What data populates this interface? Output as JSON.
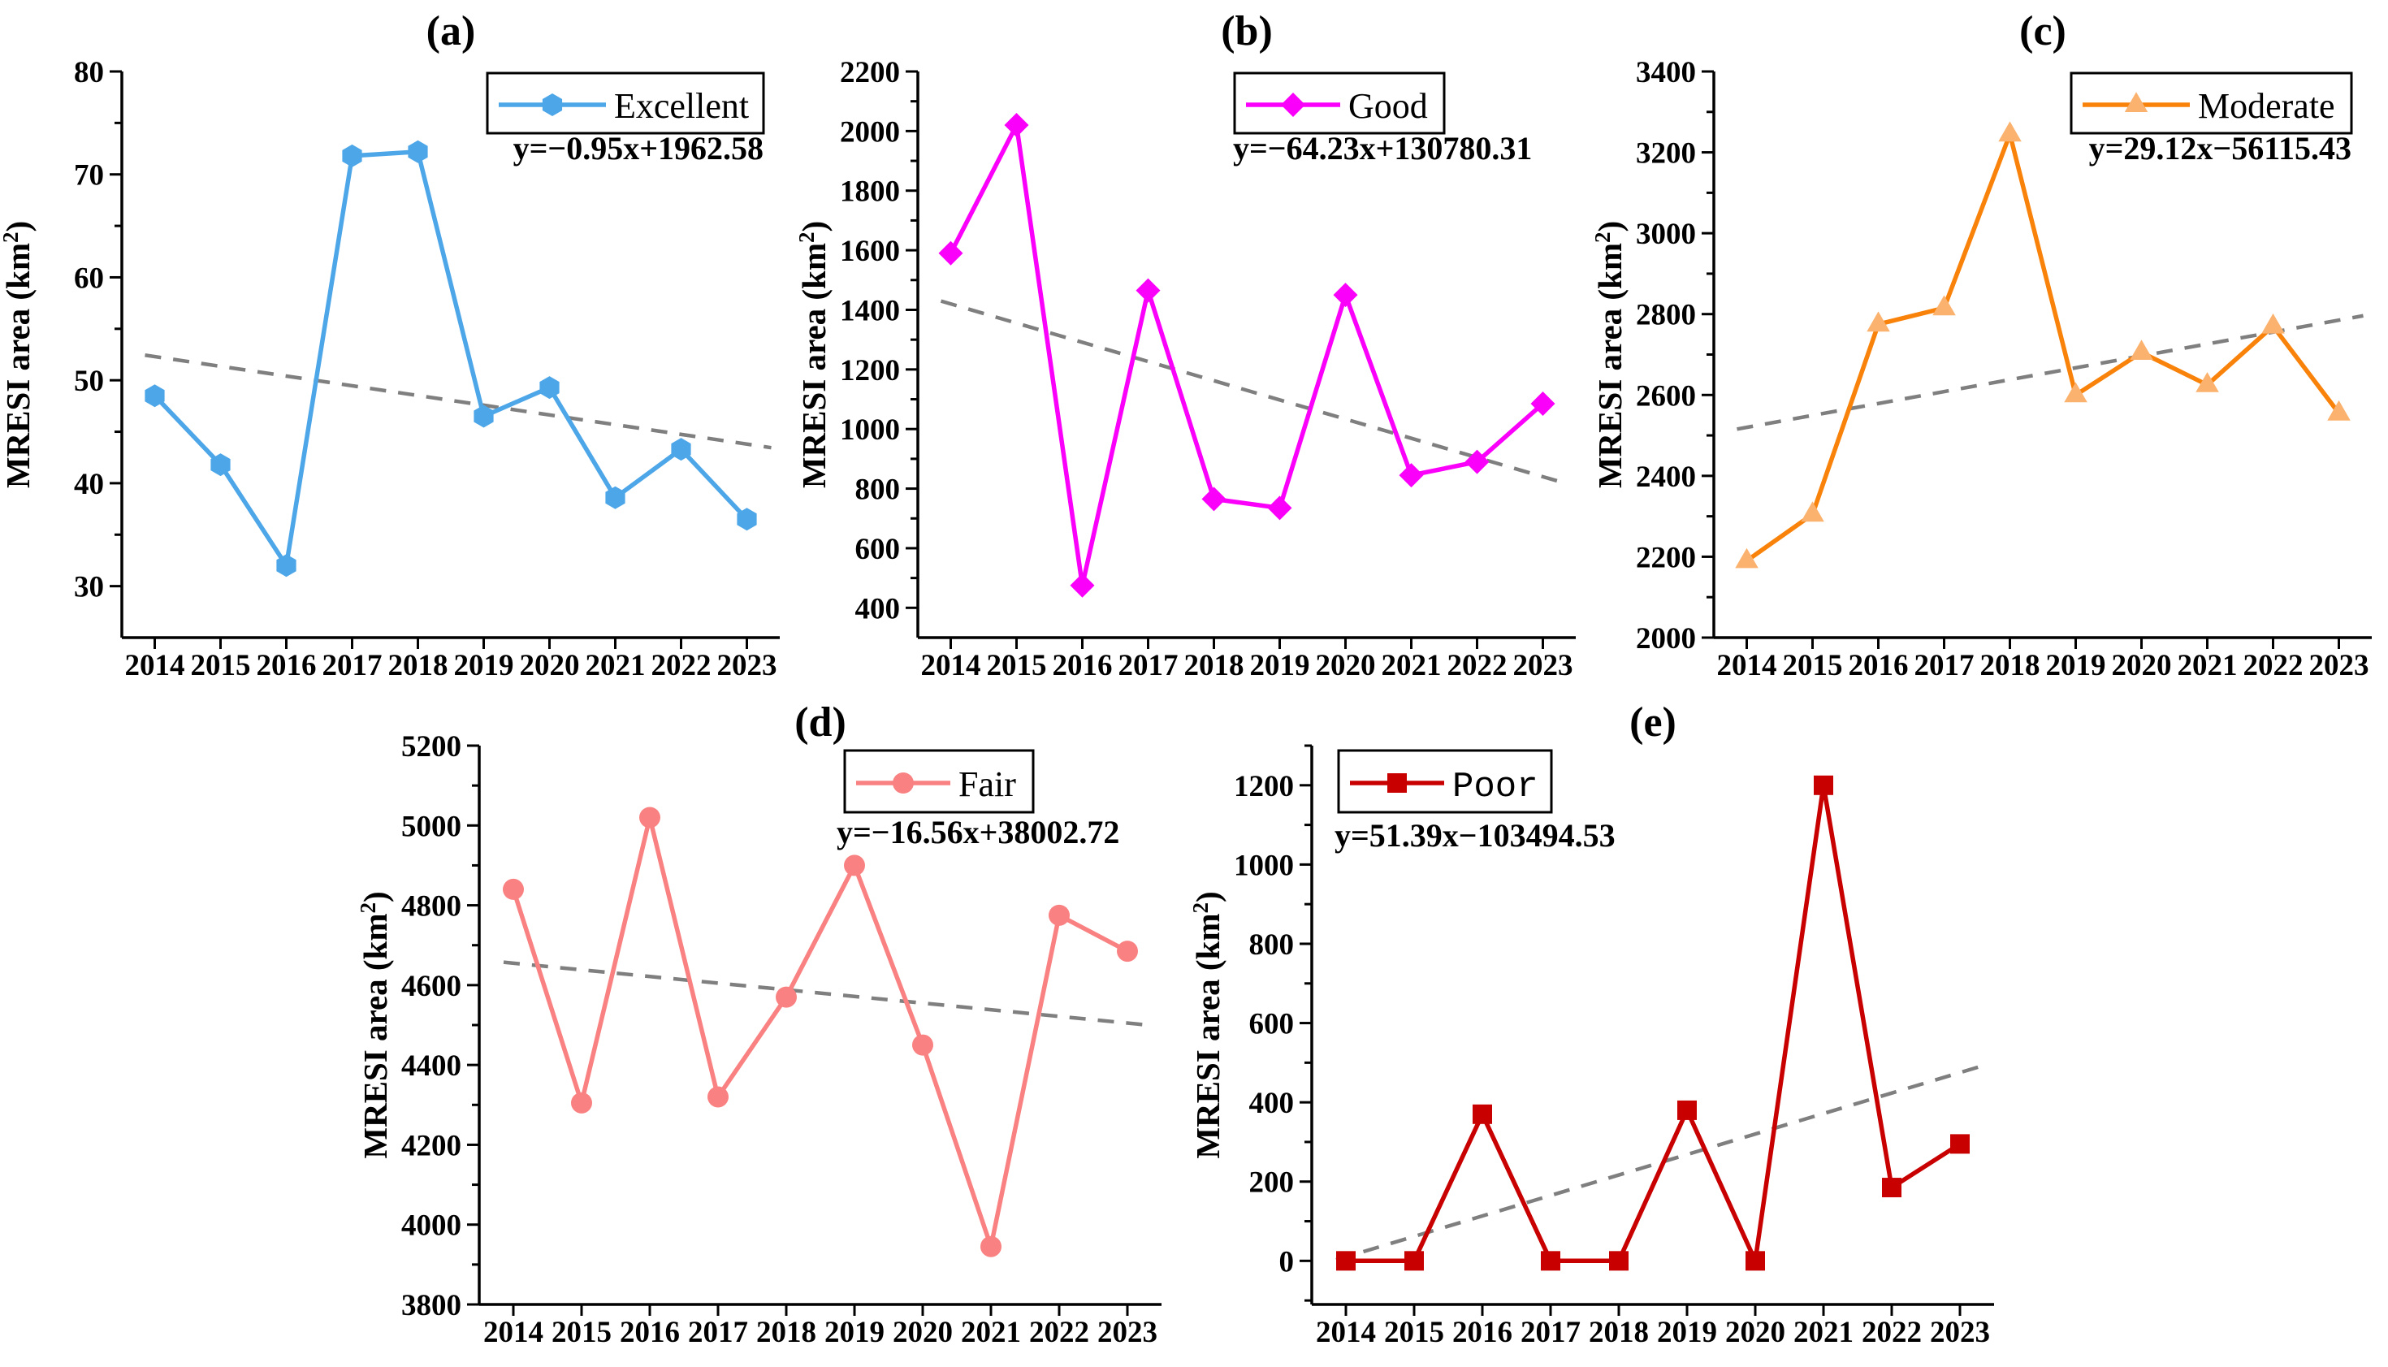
{
  "figure": {
    "background_color": "#ffffff",
    "ylabel": "MRESI area（km²）",
    "xlabel": "",
    "years": [
      2014,
      2015,
      2016,
      2017,
      2018,
      2019,
      2020,
      2021,
      2022,
      2023
    ],
    "trend_line_color": "#7f7f7f",
    "axis_color": "#000000",
    "text_color": "#000000"
  },
  "chart_data": [
    {
      "id": "a",
      "panel_label": "(a)",
      "type": "line",
      "series_name": "Excellent",
      "equation": "y=−0.95x+1962.58",
      "marker": "hexagon",
      "line_color": "#4DA6E8",
      "marker_color": "#4DA6E8",
      "categories": [
        2014,
        2015,
        2016,
        2017,
        2018,
        2019,
        2020,
        2021,
        2022,
        2023
      ],
      "values": [
        48.5,
        41.8,
        32.0,
        71.8,
        72.2,
        46.5,
        49.3,
        38.6,
        43.3,
        36.5
      ],
      "trend_endpoints": [
        52.3,
        43.8
      ],
      "ylim": [
        25,
        80
      ],
      "yticks": [
        30,
        40,
        50,
        60,
        70,
        80
      ],
      "y_minor_step": 5,
      "ylabel": "MRESI area（km²）",
      "legend_position": "top-right",
      "grid": false
    },
    {
      "id": "b",
      "panel_label": "(b)",
      "type": "line",
      "series_name": "Good",
      "equation": "y=−64.23x+130780.31",
      "marker": "diamond",
      "line_color": "#FA00FA",
      "marker_color": "#FA00FA",
      "categories": [
        2014,
        2015,
        2016,
        2017,
        2018,
        2019,
        2020,
        2021,
        2022,
        2023
      ],
      "values": [
        1590,
        2020,
        475,
        1465,
        765,
        735,
        1450,
        845,
        890,
        1085
      ],
      "trend_endpoints": [
        1420,
        840
      ],
      "ylim": [
        300,
        2200
      ],
      "yticks": [
        400,
        600,
        800,
        1000,
        1200,
        1400,
        1600,
        1800,
        2000,
        2200
      ],
      "y_minor_step": 100,
      "ylabel": "MRESI area（km²）",
      "legend_position": "top-right",
      "grid": false
    },
    {
      "id": "c",
      "panel_label": "(c)",
      "type": "line",
      "series_name": "Moderate",
      "equation": "y=29.12x−56115.43",
      "marker": "triangle",
      "line_color": "#F8820A",
      "marker_color": "#FBB26E",
      "categories": [
        2014,
        2015,
        2016,
        2017,
        2018,
        2019,
        2020,
        2021,
        2022,
        2023
      ],
      "values": [
        2190,
        2305,
        2775,
        2815,
        3245,
        2600,
        2705,
        2625,
        2770,
        2555
      ],
      "trend_endpoints": [
        2520,
        2785
      ],
      "ylim": [
        2000,
        3400
      ],
      "yticks": [
        2000,
        2200,
        2400,
        2600,
        2800,
        3000,
        3200,
        3400
      ],
      "y_minor_step": 100,
      "ylabel": "MRESI area（km²）",
      "legend_position": "top-right",
      "grid": false
    },
    {
      "id": "d",
      "panel_label": "(d)",
      "type": "line",
      "series_name": "Fair",
      "equation": "y=−16.56x+38002.72",
      "marker": "circle",
      "line_color": "#F98181",
      "marker_color": "#F98181",
      "categories": [
        2014,
        2015,
        2016,
        2017,
        2018,
        2019,
        2020,
        2021,
        2022,
        2023
      ],
      "values": [
        4840,
        4305,
        5020,
        4320,
        4570,
        4900,
        4450,
        3945,
        4775,
        4685
      ],
      "trend_endpoints": [
        4655,
        4505
      ],
      "ylim": [
        3800,
        5200
      ],
      "yticks": [
        3800,
        4000,
        4200,
        4400,
        4600,
        4800,
        5000,
        5200
      ],
      "y_minor_step": 100,
      "ylabel": "MRESI area（km²）",
      "legend_position": "top-right",
      "grid": false
    },
    {
      "id": "e",
      "panel_label": "(e)",
      "type": "line",
      "series_name": "Poor",
      "equation": "y=51.39x−103494.53",
      "marker": "square",
      "line_color": "#C80000",
      "marker_color": "#C80000",
      "categories": [
        2014,
        2015,
        2016,
        2017,
        2018,
        2019,
        2020,
        2021,
        2022,
        2023
      ],
      "values": [
        0,
        0,
        370,
        0,
        0,
        380,
        0,
        1200,
        185,
        295
      ],
      "trend_endpoints": [
        10,
        475
      ],
      "ylim": [
        -110,
        1300
      ],
      "yticks": [
        0,
        200,
        400,
        600,
        800,
        1000,
        1200
      ],
      "y_minor_step": 100,
      "ylabel": "MRESI area（km²）",
      "legend_position": "top-left",
      "grid": false
    }
  ]
}
